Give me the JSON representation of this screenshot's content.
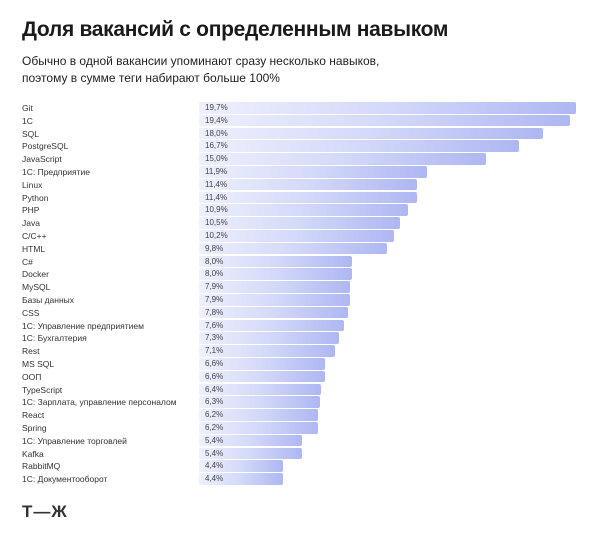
{
  "title": "Доля вакансий с определенным навыком",
  "subtitle_line1": "Обычно в одной вакансии упоминают сразу несколько навыков,",
  "subtitle_line2": "поэтому в сумме теги набирают больше 100%",
  "logo": "Т—Ж",
  "chart_data": {
    "type": "bar",
    "orientation": "horizontal",
    "title": "Доля вакансий с определенным навыком",
    "unit": "%",
    "colors": {
      "bar_start": "#eef0fd",
      "bar_end": "#aeb7f2"
    },
    "categories": [
      "Git",
      "1С",
      "SQL",
      "PostgreSQL",
      "JavaScript",
      "1С: Предприятие",
      "Linux",
      "Python",
      "PHP",
      "Java",
      "C/C++",
      "HTML",
      "C#",
      "Docker",
      "MySQL",
      "Базы данных",
      "CSS",
      "1С: Управление предприятием",
      "1С: Бухгалтерия",
      "Rest",
      "MS SQL",
      "ООП",
      "TypeScript",
      "1С: Зарплата, управление персоналом",
      "React",
      "Spring",
      "1С: Управление торговлей",
      "Kafka",
      "RabbitMQ",
      "1С: Документооборот"
    ],
    "values": [
      19.7,
      19.4,
      18.0,
      16.7,
      15.0,
      11.9,
      11.4,
      11.4,
      10.9,
      10.5,
      10.2,
      9.8,
      8.0,
      8.0,
      7.9,
      7.9,
      7.8,
      7.6,
      7.3,
      7.1,
      6.6,
      6.6,
      6.4,
      6.3,
      6.2,
      6.2,
      5.4,
      5.4,
      4.4,
      4.4
    ],
    "value_labels": [
      "19,7%",
      "19,4%",
      "18,0%",
      "16,7%",
      "15,0%",
      "11,9%",
      "11,4%",
      "11,4%",
      "10,9%",
      "10,5%",
      "10,2%",
      "9,8%",
      "8,0%",
      "8,0%",
      "7,9%",
      "7,9%",
      "7,8%",
      "7,6%",
      "7,3%",
      "7,1%",
      "6,6%",
      "6,6%",
      "6,4%",
      "6,3%",
      "6,2%",
      "6,2%",
      "5,4%",
      "5,4%",
      "4,4%",
      "4,4%"
    ]
  }
}
